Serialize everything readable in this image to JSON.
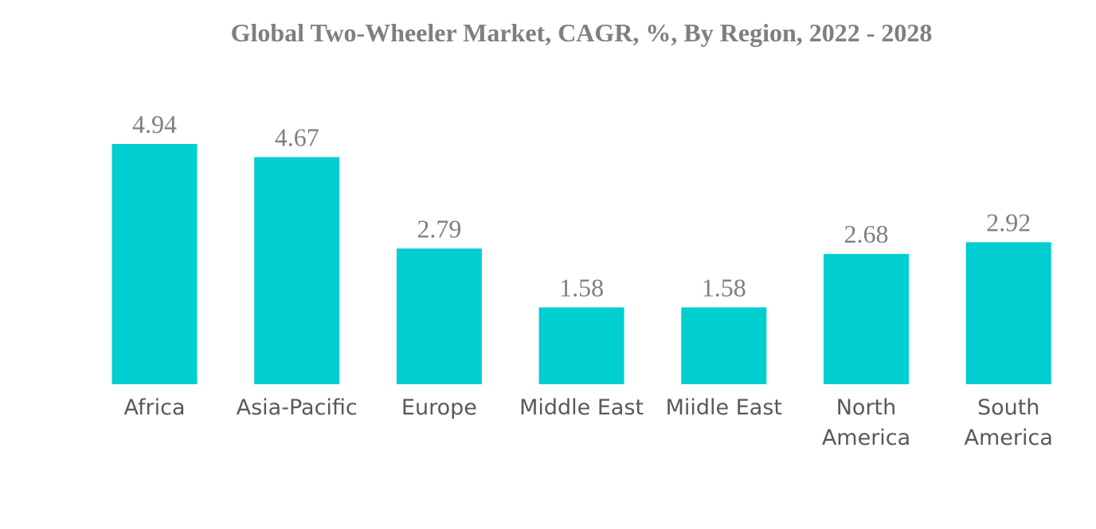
{
  "chart_data": {
    "type": "bar",
    "title": "Global Two-Wheeler Market, CAGR, %, By Region, 2022 - 2028",
    "categories": [
      [
        "Africa"
      ],
      [
        "Asia-Pacific"
      ],
      [
        "Europe"
      ],
      [
        "Middle East"
      ],
      [
        "Miidle East"
      ],
      [
        "North",
        "America"
      ],
      [
        "South",
        "America"
      ]
    ],
    "values": [
      4.94,
      4.67,
      2.79,
      1.58,
      1.58,
      2.68,
      2.92
    ],
    "value_labels": [
      "4.94",
      "4.67",
      "2.79",
      "1.58",
      "1.58",
      "2.68",
      "2.92"
    ],
    "xlabel": "",
    "ylabel": "",
    "ylim": [
      0,
      4.94
    ],
    "grid": false,
    "legend": "none",
    "bar_color": "#00CED1"
  }
}
